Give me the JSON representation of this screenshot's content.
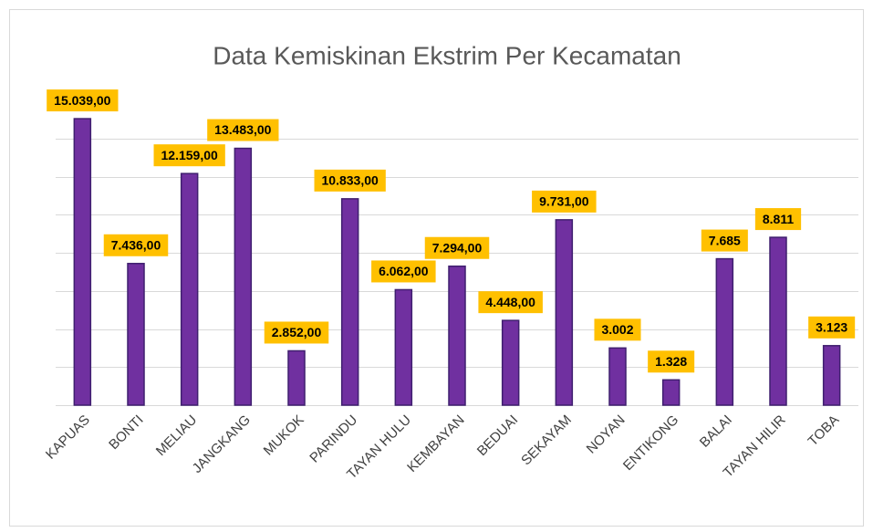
{
  "chart_data": {
    "type": "bar",
    "title": "Data Kemiskinan Ekstrim Per Kecamatan",
    "categories": [
      "KAPUAS",
      "BONTI",
      "MELIAU",
      "JANGKANG",
      "MUKOK",
      "PARINDU",
      "TAYAN HULU",
      "KEMBAYAN",
      "BEDUAI",
      "SEKAYAM",
      "NOYAN",
      "ENTIKONG",
      "BALAI",
      "TAYAN HILIR",
      "TOBA"
    ],
    "values": [
      15039,
      7436,
      12159,
      13483,
      2852,
      10833,
      6062,
      7294,
      4448,
      9731,
      3002,
      1328,
      7685,
      8811,
      3123
    ],
    "value_labels": [
      "15.039,00",
      "7.436,00",
      "12.159,00",
      "13.483,00",
      "2.852,00",
      "10.833,00",
      "6.062,00",
      "7.294,00",
      "4.448,00",
      "9.731,00",
      "3.002",
      "1.328",
      "7.685",
      "8.811",
      "3.123"
    ],
    "color": "#7030a0",
    "label_color": "#ffc000",
    "ylim": [
      0,
      16000
    ],
    "yticks": [
      0,
      2000,
      4000,
      6000,
      8000,
      10000,
      12000,
      14000
    ],
    "grid": true
  }
}
